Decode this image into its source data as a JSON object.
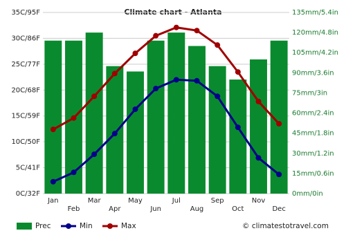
{
  "chart_data": {
    "type": "bar",
    "title": "Climate chart - Atlanta",
    "categories": [
      "Jan",
      "Feb",
      "Mar",
      "Apr",
      "May",
      "Jun",
      "Jul",
      "Aug",
      "Sep",
      "Oct",
      "Nov",
      "Dec"
    ],
    "series": [
      {
        "name": "Prec",
        "type": "bar",
        "axis": "y2",
        "color": "#0a8a2e",
        "values": [
          114,
          114,
          120,
          95,
          91,
          114,
          120,
          110,
          95,
          85,
          100,
          114
        ]
      },
      {
        "name": "Min",
        "type": "line",
        "color": "#00008b",
        "values": [
          2.3,
          4.1,
          7.6,
          11.6,
          16.3,
          20.3,
          22.0,
          21.8,
          18.8,
          12.8,
          6.9,
          3.7
        ]
      },
      {
        "name": "Max",
        "type": "line",
        "color": "#a00000",
        "values": [
          12.4,
          14.6,
          18.8,
          23.2,
          27.1,
          30.5,
          32.1,
          31.5,
          28.7,
          23.5,
          17.8,
          13.5
        ]
      }
    ],
    "ylim": [
      0,
      35
    ],
    "yticks": [
      {
        "value": 0,
        "label": "0C/32F"
      },
      {
        "value": 5,
        "label": "5C/41F"
      },
      {
        "value": 10,
        "label": "10C/50F"
      },
      {
        "value": 15,
        "label": "15C/59F"
      },
      {
        "value": 20,
        "label": "20C/68F"
      },
      {
        "value": 25,
        "label": "25C/77F"
      },
      {
        "value": 30,
        "label": "30C/86F"
      },
      {
        "value": 35,
        "label": "35C/95F"
      }
    ],
    "y2lim": [
      0,
      135
    ],
    "y2ticks": [
      {
        "value": 0,
        "label": "0mm/0in"
      },
      {
        "value": 15,
        "label": "15mm/0.6in"
      },
      {
        "value": 30,
        "label": "30mm/1.2in"
      },
      {
        "value": 45,
        "label": "45mm/1.8in"
      },
      {
        "value": 60,
        "label": "60mm/2.4in"
      },
      {
        "value": 75,
        "label": "75mm/3in"
      },
      {
        "value": 90,
        "label": "90mm/3.6in"
      },
      {
        "value": 105,
        "label": "105mm/4.2in"
      },
      {
        "value": 120,
        "label": "120mm/4.8in"
      },
      {
        "value": 135,
        "label": "135mm/5.4in"
      }
    ],
    "grid": true,
    "source": "© climatestotravel.com"
  }
}
